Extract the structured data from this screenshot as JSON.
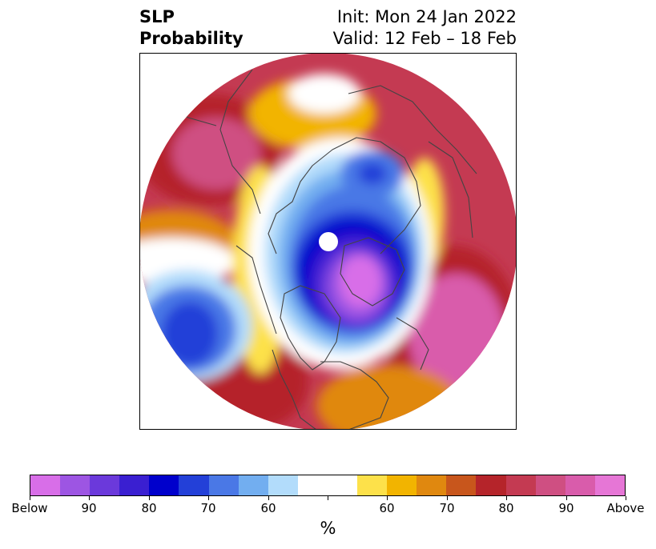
{
  "title": {
    "left_line1": "SLP",
    "left_line2": "Probability",
    "right_line1": "Init: Mon 24 Jan 2022",
    "right_line2": "Valid: 12 Feb – 18 Feb"
  },
  "map": {
    "projection": "north polar stereographic",
    "field": "sea level pressure anomaly probability",
    "below_color": "#0000d0",
    "above_color": "#c0304c"
  },
  "colorbar": {
    "colors": [
      "#d86ee8",
      "#9d55e3",
      "#6b39db",
      "#3a1fd1",
      "#0000cc",
      "#2340d8",
      "#4a78e6",
      "#72aef0",
      "#b2dcfb",
      "#ffffff",
      "#ffffff",
      "#fde14a",
      "#f2b400",
      "#e0880f",
      "#c8561c",
      "#b5242a",
      "#c43a52",
      "#cf4f82",
      "#d95cab",
      "#e676d6"
    ],
    "tick_labels": [
      "Below",
      "90",
      "80",
      "70",
      "60",
      "",
      "60",
      "70",
      "80",
      "90",
      "Above"
    ],
    "unit_label": "%"
  }
}
